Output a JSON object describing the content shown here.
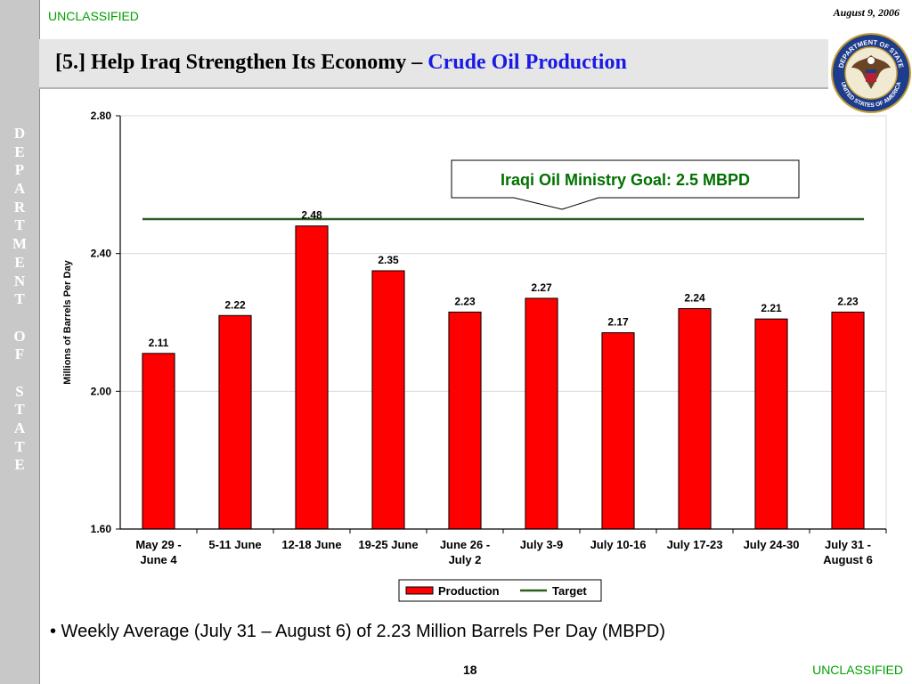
{
  "header": {
    "classification_top": "UNCLASSIFIED",
    "date": "August 9, 2006",
    "title_prefix": "[5.] Help Iraq Strengthen Its Economy – ",
    "title_accent": "Crude Oil Production"
  },
  "sidebar": {
    "letters": [
      "D",
      "E",
      "P",
      "A",
      "R",
      "T",
      "M",
      "E",
      "N",
      "T",
      "",
      "O",
      "F",
      "",
      "S",
      "T",
      "A",
      "T",
      "E"
    ]
  },
  "seal": {
    "top_text": "DEPARTMENT OF STATE",
    "bottom_text": "UNITED STATES OF AMERICA"
  },
  "chart_data": {
    "type": "bar",
    "categories": [
      [
        "May 29 -",
        "June 4"
      ],
      [
        "5-11 June"
      ],
      [
        "12-18 June"
      ],
      [
        "19-25 June"
      ],
      [
        "June 26 -",
        "July 2"
      ],
      [
        "July 3-9"
      ],
      [
        "July 10-16"
      ],
      [
        "July 17-23"
      ],
      [
        "July 24-30"
      ],
      [
        "July 31 -",
        "August 6"
      ]
    ],
    "series": [
      {
        "name": "Production",
        "values": [
          2.11,
          2.22,
          2.48,
          2.35,
          2.23,
          2.27,
          2.17,
          2.24,
          2.21,
          2.23
        ],
        "color": "#ff0000"
      }
    ],
    "target": {
      "name": "Target",
      "value": 2.5,
      "color": "#2e5e1e"
    },
    "data_labels": [
      "2.11",
      "2.22",
      "2.48",
      "2.35",
      "2.23",
      "2.27",
      "2.17",
      "2.24",
      "2.21",
      "2.23"
    ],
    "ylabel": "Millions of Barrels Per Day",
    "ylim": [
      1.6,
      2.8
    ],
    "yticks": [
      "1.60",
      "2.00",
      "2.40",
      "2.80"
    ],
    "grid": true,
    "legend_position": "bottom",
    "annotation": "Iraqi Oil Ministry Goal:  2.5 MBPD",
    "annotation_color": "#007000"
  },
  "footer": {
    "bullet": "• Weekly Average (July 31 – August 6) of 2.23 Million Barrels Per Day (MBPD)",
    "page_number": "18",
    "classification_bottom": "UNCLASSIFIED"
  }
}
